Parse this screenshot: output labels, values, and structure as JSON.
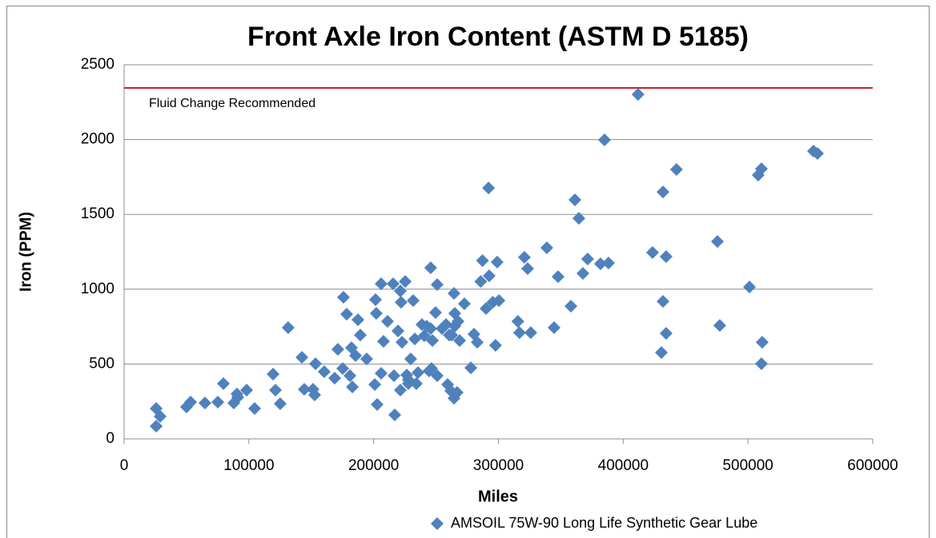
{
  "chart_data": {
    "type": "scatter",
    "title": "Front Axle Iron Content (ASTM D 5185)",
    "x_label": "Miles",
    "y_label": "Iron (PPM)",
    "xlim": [
      0,
      600000
    ],
    "xticks": [
      0,
      100000,
      200000,
      300000,
      400000,
      500000,
      600000
    ],
    "ylim": [
      0,
      2500
    ],
    "yticks": [
      0,
      500,
      1000,
      1500,
      2000,
      2500
    ],
    "grid": true,
    "legend_position": "bottom",
    "reference_line": {
      "value": 2345,
      "label": "Fluid Change Recommended",
      "color": "#c0262d"
    },
    "series": [
      {
        "name": "AMSOIL 75W-90 Long Life Synthetic Gear Lube",
        "color": "#4f81bd",
        "x": [
          25700,
          25700,
          28900,
          50000,
          53300,
          64800,
          75100,
          79600,
          87900,
          91100,
          90400,
          98200,
          104600,
          119400,
          121300,
          125100,
          131500,
          142500,
          144400,
          151400,
          152700,
          153400,
          160400,
          168800,
          171300,
          175200,
          175800,
          178400,
          181000,
          182200,
          182900,
          185500,
          187400,
          189300,
          194400,
          201500,
          200900,
          202100,
          202800,
          206000,
          206000,
          207900,
          211100,
          215600,
          216300,
          216900,
          219500,
          221400,
          222000,
          221400,
          222700,
          225300,
          226500,
          227800,
          227800,
          229700,
          231700,
          233000,
          234200,
          235500,
          238700,
          240600,
          242500,
          244400,
          245700,
          246400,
          247100,
          245700,
          249600,
          250900,
          250900,
          254800,
          258000,
          259300,
          260600,
          261800,
          262500,
          264400,
          264400,
          265000,
          265000,
          267600,
          266900,
          268900,
          272700,
          277900,
          280400,
          283000,
          285800,
          287200,
          290100,
          292100,
          292600,
          295500,
          297700,
          299000,
          300400,
          315600,
          316900,
          320800,
          323400,
          325900,
          338800,
          344600,
          347800,
          358100,
          361300,
          364500,
          367700,
          371500,
          381800,
          385000,
          388200,
          411900,
          423500,
          430600,
          431900,
          431900,
          434400,
          434400,
          442700,
          475500,
          477400,
          501200,
          508200,
          510800,
          511400,
          510800,
          552500,
          555700
        ],
        "values": [
          203,
          85,
          150,
          214,
          246,
          240,
          246,
          369,
          240,
          278,
          300,
          326,
          203,
          433,
          326,
          235,
          743,
          545,
          331,
          331,
          294,
          502,
          449,
          406,
          598,
          470,
          946,
          833,
          422,
          609,
          347,
          556,
          796,
          694,
          534,
          930,
          363,
          839,
          230,
          438,
          1036,
          652,
          785,
          1036,
          422,
          160,
          721,
          988,
          913,
          326,
          646,
          1052,
          427,
          395,
          369,
          534,
          924,
          668,
          369,
          443,
          764,
          689,
          753,
          454,
          737,
          470,
          657,
          1143,
          844,
          422,
          1031,
          737,
          764,
          363,
          694,
          321,
          694,
          272,
          972,
          839,
          753,
          785,
          310,
          657,
          903,
          475,
          700,
          646,
          1052,
          1191,
          871,
          1677,
          1090,
          913,
          625,
          1181,
          924,
          785,
          710,
          1213,
          1138,
          710,
          1277,
          743,
          1084,
          887,
          1597,
          1474,
          1106,
          1202,
          1170,
          1998,
          1175,
          2302,
          1245,
          577,
          1650,
          919,
          1218,
          705,
          1800,
          1319,
          758,
          1015,
          1763,
          1805,
          646,
          502,
          1923,
          1907
        ]
      }
    ]
  }
}
